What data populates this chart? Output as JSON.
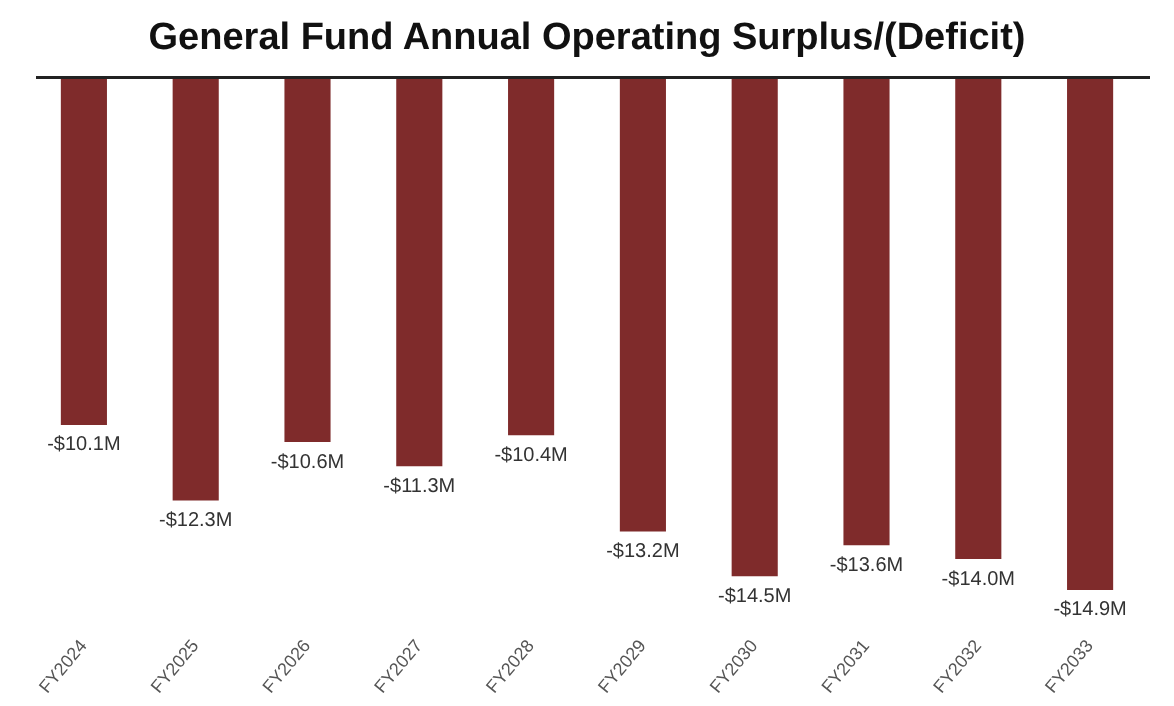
{
  "chart_data": {
    "type": "bar",
    "title": "General Fund Annual Operating Surplus/(Deficit)",
    "categories": [
      "FY2024",
      "FY2025",
      "FY2026",
      "FY2027",
      "FY2028",
      "FY2029",
      "FY2030",
      "FY2031",
      "FY2032",
      "FY2033"
    ],
    "values": [
      -10.1,
      -12.3,
      -10.6,
      -11.3,
      -10.4,
      -13.2,
      -14.5,
      -13.6,
      -14.0,
      -14.9
    ],
    "value_labels": [
      "-$10.1M",
      "-$12.3M",
      "-$10.6M",
      "-$11.3M",
      "-$10.4M",
      "-$13.2M",
      "-$14.5M",
      "-$13.6M",
      "-$14.0M",
      "-$14.9M"
    ],
    "color": "#7f2b2b",
    "grid": false,
    "legend": false
  }
}
